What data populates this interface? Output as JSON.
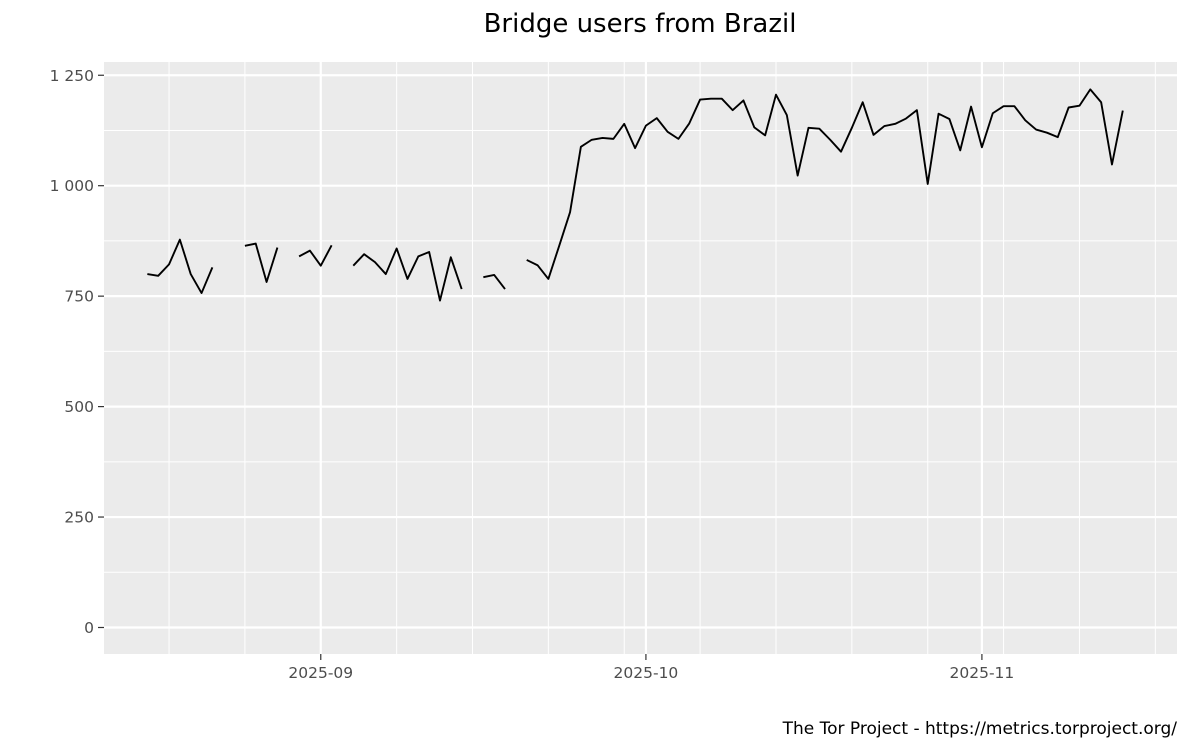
{
  "chart_data": {
    "type": "line",
    "title": "Bridge users from Brazil",
    "xlabel": "",
    "ylabel": "",
    "caption": "The Tor Project - https://metrics.torproject.org/",
    "x_tick_labels": [
      "2025-09",
      "2025-10",
      "2025-11"
    ],
    "y_tick_labels": [
      "0",
      "250",
      "500",
      "750",
      "1 000",
      "1 250"
    ],
    "ylim": [
      -60,
      1280
    ],
    "xlim": [
      "2025-08-12",
      "2025-11-19"
    ],
    "grid": true,
    "legend": "none",
    "colors": {
      "panel": "#ebebeb",
      "grid": "#ffffff",
      "line": "#000000",
      "tick_text": "#4d4d4d"
    },
    "series": [
      {
        "points": [
          [
            "2025-08-16",
            800
          ],
          [
            "2025-08-17",
            796
          ],
          [
            "2025-08-18",
            822
          ],
          [
            "2025-08-19",
            878
          ],
          [
            "2025-08-20",
            800
          ],
          [
            "2025-08-21",
            757
          ],
          [
            "2025-08-22",
            815
          ],
          [
            "2025-08-23",
            null
          ],
          [
            "2025-08-24",
            null
          ],
          [
            "2025-08-25",
            864
          ],
          [
            "2025-08-26",
            869
          ],
          [
            "2025-08-27",
            782
          ],
          [
            "2025-08-28",
            860
          ],
          [
            "2025-08-29",
            null
          ],
          [
            "2025-08-30",
            840
          ],
          [
            "2025-08-31",
            853
          ],
          [
            "2025-09-01",
            819
          ],
          [
            "2025-09-02",
            865
          ],
          [
            "2025-09-03",
            null
          ],
          [
            "2025-09-04",
            819
          ],
          [
            "2025-09-05",
            845
          ],
          [
            "2025-09-06",
            827
          ],
          [
            "2025-09-07",
            800
          ],
          [
            "2025-09-08",
            858
          ],
          [
            "2025-09-09",
            789
          ],
          [
            "2025-09-10",
            840
          ],
          [
            "2025-09-11",
            850
          ],
          [
            "2025-09-12",
            740
          ],
          [
            "2025-09-13",
            838
          ],
          [
            "2025-09-14",
            766
          ],
          [
            "2025-09-15",
            null
          ],
          [
            "2025-09-16",
            793
          ],
          [
            "2025-09-17",
            798
          ],
          [
            "2025-09-18",
            766
          ],
          [
            "2025-09-19",
            null
          ],
          [
            "2025-09-20",
            832
          ],
          [
            "2025-09-21",
            820
          ],
          [
            "2025-09-22",
            789
          ],
          [
            "2025-09-23",
            864
          ],
          [
            "2025-09-24",
            940
          ],
          [
            "2025-09-25",
            1088
          ],
          [
            "2025-09-26",
            1104
          ],
          [
            "2025-09-27",
            1108
          ],
          [
            "2025-09-28",
            1106
          ],
          [
            "2025-09-29",
            1140
          ],
          [
            "2025-09-30",
            1085
          ],
          [
            "2025-10-01",
            1136
          ],
          [
            "2025-10-02",
            1153
          ],
          [
            "2025-10-03",
            1122
          ],
          [
            "2025-10-04",
            1106
          ],
          [
            "2025-10-05",
            1141
          ],
          [
            "2025-10-06",
            1195
          ],
          [
            "2025-10-07",
            1197
          ],
          [
            "2025-10-08",
            1197
          ],
          [
            "2025-10-09",
            1171
          ],
          [
            "2025-10-10",
            1193
          ],
          [
            "2025-10-11",
            1132
          ],
          [
            "2025-10-12",
            1114
          ],
          [
            "2025-10-13",
            1206
          ],
          [
            "2025-10-14",
            1160
          ],
          [
            "2025-10-15",
            1023
          ],
          [
            "2025-10-16",
            1131
          ],
          [
            "2025-10-17",
            1129
          ],
          [
            "2025-10-18",
            1104
          ],
          [
            "2025-10-19",
            1077
          ],
          [
            "2025-10-20",
            1131
          ],
          [
            "2025-10-21",
            1189
          ],
          [
            "2025-10-22",
            1115
          ],
          [
            "2025-10-23",
            1135
          ],
          [
            "2025-10-24",
            1140
          ],
          [
            "2025-10-25",
            1152
          ],
          [
            "2025-10-26",
            1171
          ],
          [
            "2025-10-27",
            1004
          ],
          [
            "2025-10-28",
            1163
          ],
          [
            "2025-10-29",
            1151
          ],
          [
            "2025-10-30",
            1080
          ],
          [
            "2025-10-31",
            1179
          ],
          [
            "2025-11-01",
            1087
          ],
          [
            "2025-11-02",
            1164
          ],
          [
            "2025-11-03",
            1180
          ],
          [
            "2025-11-04",
            1180
          ],
          [
            "2025-11-05",
            1148
          ],
          [
            "2025-11-06",
            1127
          ],
          [
            "2025-11-07",
            1120
          ],
          [
            "2025-11-08",
            1110
          ],
          [
            "2025-11-09",
            1177
          ],
          [
            "2025-11-10",
            1181
          ],
          [
            "2025-11-11",
            1218
          ],
          [
            "2025-11-12",
            1189
          ],
          [
            "2025-11-13",
            1048
          ],
          [
            "2025-11-14",
            1170
          ]
        ]
      }
    ]
  }
}
